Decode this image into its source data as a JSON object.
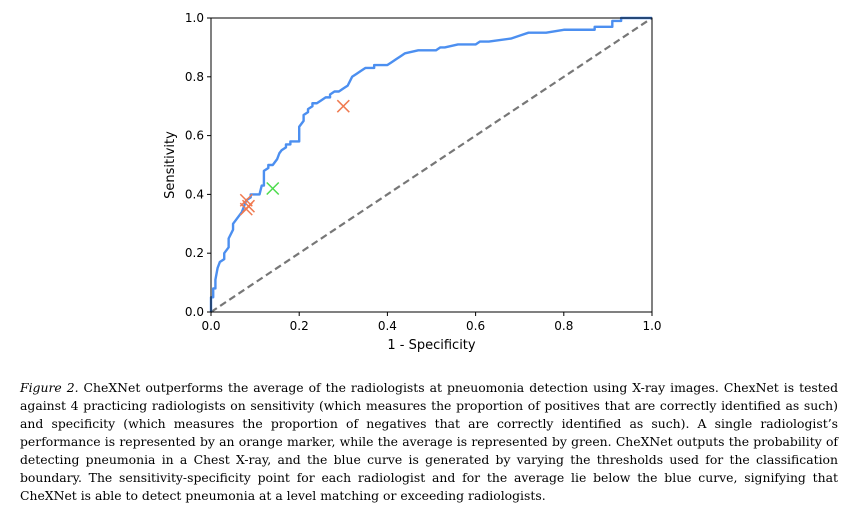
{
  "chart_data": {
    "type": "line",
    "xlabel": "1 - Specificity",
    "ylabel": "Sensitivity",
    "xlim": [
      0,
      1
    ],
    "ylim": [
      0,
      1
    ],
    "xticks": [
      "0.0",
      "0.2",
      "0.4",
      "0.6",
      "0.8",
      "1.0"
    ],
    "yticks": [
      "0.0",
      "0.2",
      "0.4",
      "0.6",
      "0.8",
      "1.0"
    ],
    "grid": false,
    "series": [
      {
        "color": "#4c8ff0",
        "style": "solid",
        "x": [
          0.0,
          0.0,
          0.005,
          0.005,
          0.01,
          0.01,
          0.015,
          0.02,
          0.03,
          0.03,
          0.04,
          0.04,
          0.05,
          0.05,
          0.06,
          0.07,
          0.075,
          0.08,
          0.09,
          0.09,
          0.1,
          0.11,
          0.115,
          0.12,
          0.12,
          0.13,
          0.13,
          0.14,
          0.15,
          0.155,
          0.16,
          0.17,
          0.17,
          0.18,
          0.18,
          0.2,
          0.2,
          0.21,
          0.21,
          0.22,
          0.22,
          0.23,
          0.23,
          0.24,
          0.25,
          0.26,
          0.27,
          0.27,
          0.28,
          0.29,
          0.3,
          0.31,
          0.32,
          0.33,
          0.34,
          0.35,
          0.36,
          0.37,
          0.37,
          0.38,
          0.4,
          0.41,
          0.42,
          0.43,
          0.44,
          0.47,
          0.5,
          0.51,
          0.52,
          0.53,
          0.56,
          0.6,
          0.61,
          0.63,
          0.68,
          0.7,
          0.72,
          0.76,
          0.8,
          0.85,
          0.87,
          0.87,
          0.9,
          0.91,
          0.91,
          0.93,
          0.93,
          1.0
        ],
        "y": [
          0.0,
          0.05,
          0.05,
          0.08,
          0.08,
          0.11,
          0.15,
          0.17,
          0.18,
          0.2,
          0.22,
          0.25,
          0.28,
          0.3,
          0.32,
          0.34,
          0.36,
          0.38,
          0.39,
          0.4,
          0.4,
          0.4,
          0.43,
          0.43,
          0.48,
          0.49,
          0.5,
          0.5,
          0.52,
          0.54,
          0.55,
          0.56,
          0.57,
          0.57,
          0.58,
          0.58,
          0.63,
          0.65,
          0.67,
          0.68,
          0.69,
          0.7,
          0.71,
          0.71,
          0.72,
          0.73,
          0.73,
          0.74,
          0.75,
          0.75,
          0.76,
          0.77,
          0.8,
          0.81,
          0.82,
          0.83,
          0.83,
          0.83,
          0.84,
          0.84,
          0.84,
          0.85,
          0.86,
          0.87,
          0.88,
          0.89,
          0.89,
          0.89,
          0.9,
          0.9,
          0.91,
          0.91,
          0.92,
          0.92,
          0.93,
          0.94,
          0.95,
          0.95,
          0.96,
          0.96,
          0.96,
          0.97,
          0.97,
          0.97,
          0.99,
          0.99,
          1.0,
          1.0
        ]
      },
      {
        "color": "#777777",
        "style": "dashed",
        "x": [
          0,
          1
        ],
        "y": [
          0,
          1
        ]
      }
    ],
    "points": [
      {
        "x": 0.08,
        "y": 0.38,
        "color": "#f07a50",
        "marker": "x"
      },
      {
        "x": 0.085,
        "y": 0.36,
        "color": "#f07a50",
        "marker": "x"
      },
      {
        "x": 0.08,
        "y": 0.35,
        "color": "#f07a50",
        "marker": "x"
      },
      {
        "x": 0.3,
        "y": 0.7,
        "color": "#f07a50",
        "marker": "x"
      },
      {
        "x": 0.14,
        "y": 0.42,
        "color": "#4ddb4d",
        "marker": "x"
      }
    ]
  },
  "caption": {
    "label": "Figure 2.",
    "text": " CheXNet outperforms the average of the radiologists at pneuomonia detection using X-ray images. ChexNet is tested against 4 practicing radiologists on sensitivity (which measures the proportion of positives that are correctly identified as such) and specificity (which measures the proportion of negatives that are correctly identified as such). A single radiologist’s performance is represented by an orange marker, while the average is represented by green. CheXNet outputs the probability of detecting pneumonia in a Chest X-ray, and the blue curve is generated by varying the thresholds used for the classification boundary. The sensitivity-specificity point for each radiologist and for the average lie below the blue curve, signifying that CheXNet is able to detect pneumonia at a level matching or exceeding radiologists."
  }
}
